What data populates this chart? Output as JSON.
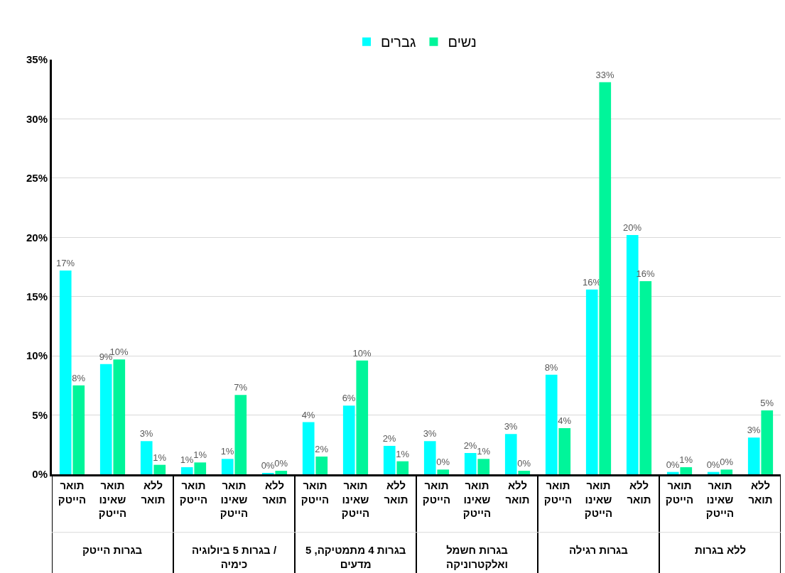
{
  "chart_data": {
    "type": "bar",
    "categories": [
      "תואר הייטק",
      "תואר שאינו הייטק",
      "ללא תואר",
      "תואר הייטק",
      "תואר שאינו הייטק",
      "ללא תואר",
      "תואר הייטק",
      "תואר שאינו הייטק",
      "ללא תואר",
      "תואר הייטק",
      "תואר שאינו הייטק",
      "ללא תואר",
      "תואר הייטק",
      "תואר שאינו הייטק",
      "ללא תואר",
      "תואר הייטק",
      "תואר שאינו הייטק",
      "ללא תואר"
    ],
    "series": [
      {
        "name": "גברים",
        "color": "#00ffff",
        "values": [
          17.2,
          9.3,
          2.8,
          0.6,
          1.3,
          0.1,
          4.4,
          5.8,
          2.4,
          2.8,
          1.8,
          3.4,
          8.4,
          15.6,
          20.2,
          0.2,
          0.2,
          3.1
        ],
        "value_labels": [
          "17%",
          "9%",
          "3%",
          "1%",
          "1%",
          "0%",
          "4%",
          "6%",
          "2%",
          "3%",
          "2%",
          "3%",
          "8%",
          "16%",
          "20%",
          "0%",
          "0%",
          "3%"
        ]
      },
      {
        "name": "נשים",
        "color": "#00f59a",
        "values": [
          7.5,
          9.7,
          0.8,
          1.0,
          6.7,
          0.3,
          1.5,
          9.6,
          1.1,
          0.4,
          1.3,
          0.3,
          3.9,
          33.1,
          16.3,
          0.6,
          0.4,
          5.4
        ],
        "value_labels": [
          "8%",
          "10%",
          "1%",
          "1%",
          "7%",
          "0%",
          "2%",
          "10%",
          "1%",
          "0%",
          "1%",
          "0%",
          "4%",
          "33%",
          "16%",
          "1%",
          "0%",
          "5%"
        ]
      }
    ],
    "annotations": [
      "בגרות הייטק",
      "בגרות 5 ביולוגיה / כימיה",
      "בגרות 4 מתמטיקה, 5 מדעים",
      "בגרות חשמל ואלקטרוניקה",
      "בגרות רגילה",
      "ללא בגרות"
    ],
    "ylim": [
      0,
      35
    ],
    "yticks": [
      {
        "value": 0,
        "label": "0%"
      },
      {
        "value": 5,
        "label": "5%"
      },
      {
        "value": 10,
        "label": "10%"
      },
      {
        "value": 15,
        "label": "15%"
      },
      {
        "value": 20,
        "label": "20%"
      },
      {
        "value": 25,
        "label": "25%"
      },
      {
        "value": 30,
        "label": "30%"
      },
      {
        "value": 35,
        "label": "35%"
      }
    ],
    "grid": "y",
    "legend": "top"
  }
}
